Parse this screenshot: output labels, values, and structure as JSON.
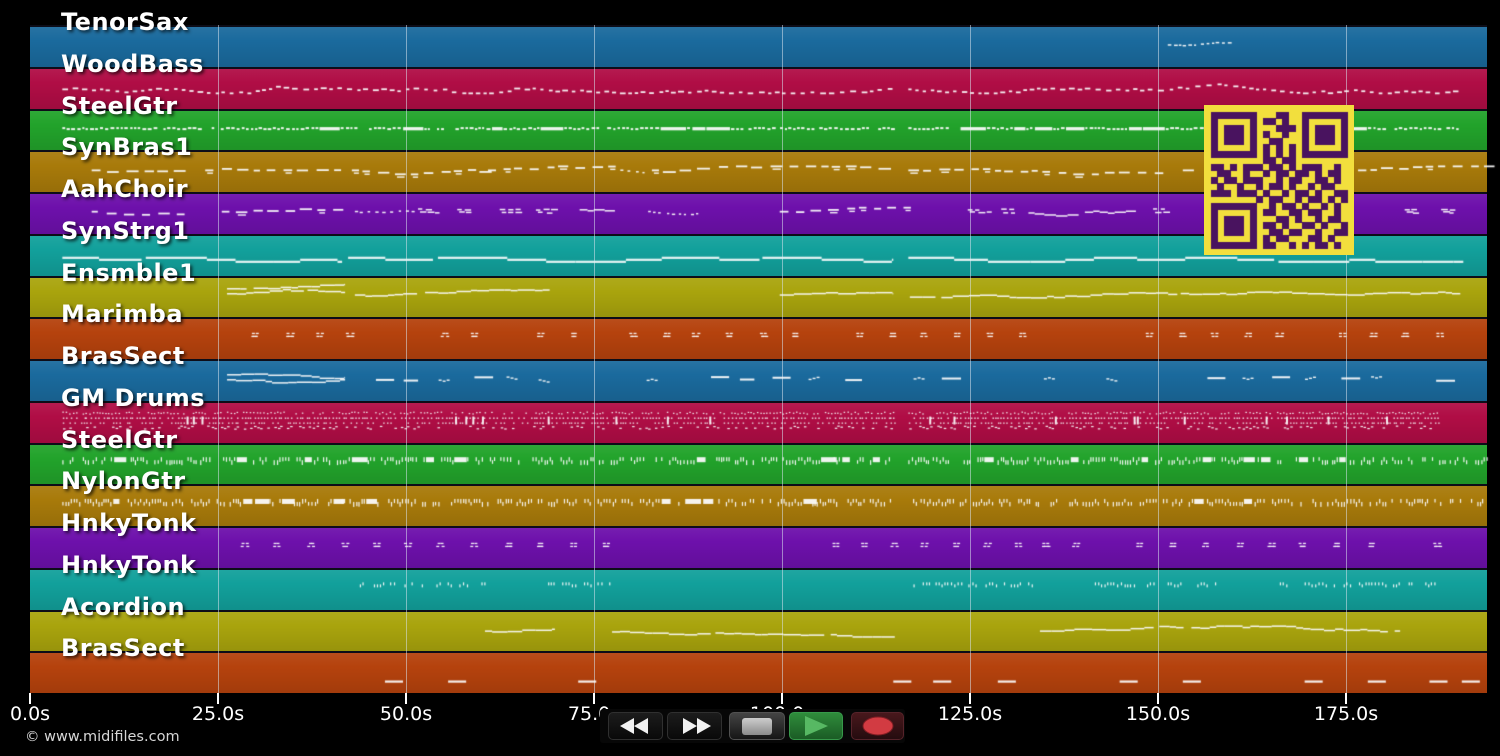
{
  "watermark": {
    "text": "© www.midifiles.com"
  },
  "colors": {
    "background": "#000000",
    "band_separator": "#0d0d18",
    "gridline": "#d7e1ec",
    "note": "#fafafa",
    "sustain_note": "#e6f4f3",
    "qr_bg": "#f2df3d",
    "qr_fg": "#49135f",
    "play_green": "#57b863",
    "record_red": "#d23b42",
    "stop_gray": "#ababab"
  },
  "timeline": {
    "duration_s": 193.8,
    "ticks": [
      {
        "s": 0,
        "label": "0.0s"
      },
      {
        "s": 25,
        "label": "25.0s"
      },
      {
        "s": 50,
        "label": "50.0s"
      },
      {
        "s": 75,
        "label": "75.0s"
      },
      {
        "s": 100,
        "label": "100.0s"
      },
      {
        "s": 125,
        "label": "125.0s"
      },
      {
        "s": 150,
        "label": "150.0s"
      },
      {
        "s": 175,
        "label": "175.0s"
      }
    ]
  },
  "transport": {
    "buttons": [
      {
        "name": "rewind"
      },
      {
        "name": "fast-forward"
      },
      {
        "name": "stop"
      },
      {
        "name": "play"
      },
      {
        "name": "record"
      }
    ]
  },
  "tracks": [
    {
      "label": "TenorSax",
      "color": "#1a6a9d",
      "segments": [
        {
          "style": "tiny",
          "from": 151.3,
          "to": 155.1,
          "y": 0.46
        },
        {
          "style": "tiny",
          "from": 155.7,
          "to": 159.4,
          "y": 0.44
        }
      ]
    },
    {
      "label": "WoodBass",
      "color": "#b00d45",
      "segments": [
        {
          "style": "bass",
          "from": 4.3,
          "to": 114.8,
          "y": 0.52
        },
        {
          "style": "bass",
          "from": 116.8,
          "to": 190.2,
          "y": 0.52
        }
      ]
    },
    {
      "label": "SteelGtr",
      "color": "#22a32b",
      "segments": [
        {
          "style": "strum",
          "from": 4.3,
          "to": 114.8,
          "y": 0.47
        },
        {
          "style": "strum",
          "from": 116.8,
          "to": 190.2,
          "y": 0.47
        }
      ]
    },
    {
      "label": "SynBras1",
      "color": "#a87a0a",
      "segments": [
        {
          "style": "dashline",
          "from": 8.2,
          "to": 19.9,
          "y": 0.46
        },
        {
          "style": "dashline",
          "from": 23.3,
          "to": 41.9,
          "y": 0.46
        },
        {
          "style": "dashline",
          "from": 42.8,
          "to": 59.8,
          "y": 0.46
        },
        {
          "style": "dashline",
          "from": 60.9,
          "to": 77.1,
          "y": 0.46
        },
        {
          "style": "dots",
          "from": 78.5,
          "to": 82.0,
          "y": 0.46
        },
        {
          "style": "dashline",
          "from": 82.7,
          "to": 114.8,
          "y": 0.46
        },
        {
          "style": "dashline",
          "from": 116.8,
          "to": 150.3,
          "y": 0.46
        },
        {
          "style": "dashline",
          "from": 153.3,
          "to": 155.7,
          "y": 0.46
        },
        {
          "style": "dashline",
          "from": 176.6,
          "to": 193.7,
          "y": 0.46
        }
      ]
    },
    {
      "label": "AahChoir",
      "color": "#6d10ab",
      "segments": [
        {
          "style": "dashline",
          "from": 8.2,
          "to": 19.9,
          "y": 0.45
        },
        {
          "style": "dashline",
          "from": 25.5,
          "to": 41.9,
          "y": 0.45
        },
        {
          "style": "dots",
          "from": 43.2,
          "to": 51.2,
          "y": 0.45
        },
        {
          "style": "clusters",
          "from": 51.6,
          "to": 77.1,
          "y": 0.45
        },
        {
          "style": "dots",
          "from": 82.2,
          "to": 89.1,
          "y": 0.45
        },
        {
          "style": "dashline",
          "from": 99.7,
          "to": 116.5,
          "y": 0.45
        },
        {
          "style": "clusters",
          "from": 124.7,
          "to": 150.3,
          "y": 0.45
        },
        {
          "style": "clusters",
          "from": 182.8,
          "to": 189.5,
          "y": 0.45
        }
      ]
    },
    {
      "label": "SynStrg1",
      "color": "#12a09b",
      "segments": [
        {
          "style": "sustain",
          "from": 4.3,
          "to": 41.5,
          "y": 0.55
        },
        {
          "style": "sustain",
          "from": 42.3,
          "to": 114.8,
          "y": 0.55
        },
        {
          "style": "sustain",
          "from": 116.8,
          "to": 190.6,
          "y": 0.55
        }
      ]
    },
    {
      "label": "Ensmble1",
      "color": "#a9a40d",
      "segments": [
        {
          "style": "dmelody",
          "from": 26.2,
          "to": 41.9,
          "y": 0.42
        },
        {
          "style": "melody",
          "from": 43.2,
          "to": 69.1,
          "y": 0.45
        },
        {
          "style": "melody",
          "from": 99.7,
          "to": 114.8,
          "y": 0.45
        },
        {
          "style": "melody",
          "from": 117.0,
          "to": 190.2,
          "y": 0.5
        }
      ]
    },
    {
      "label": "Marimba",
      "color": "#b5420d",
      "segments": [
        {
          "style": "pairs",
          "from": 29.3,
          "to": 189.5,
          "y": 0.42,
          "spacing": 4.3,
          "dropout": 0.12
        }
      ]
    },
    {
      "label": "BrasSect",
      "color": "#1a6a9d",
      "segments": [
        {
          "style": "dmelody",
          "from": 26.2,
          "to": 41.9,
          "y": 0.48
        },
        {
          "style": "mixed",
          "from": 46.0,
          "to": 70.0,
          "y": 0.45,
          "spacing": 4.3,
          "dropout": 0.15
        },
        {
          "style": "mixed",
          "from": 82.0,
          "to": 190.2,
          "y": 0.45,
          "spacing": 4.4,
          "dropout": 0.35
        }
      ]
    },
    {
      "label": "GM Drums",
      "color": "#b00d45",
      "segments": [
        {
          "style": "drums",
          "from": 4.3,
          "to": 114.8,
          "y": 0.45
        },
        {
          "style": "drums",
          "from": 116.8,
          "to": 187.1,
          "y": 0.45
        }
      ]
    },
    {
      "label": "SteelGtr",
      "color": "#22a32b",
      "segments": [
        {
          "style": "ticks",
          "from": 4.3,
          "to": 114.8,
          "y": 0.4
        },
        {
          "style": "ticks",
          "from": 116.8,
          "to": 193.7,
          "y": 0.4
        }
      ]
    },
    {
      "label": "NylonGtr",
      "color": "#a87a0a",
      "segments": [
        {
          "style": "ticks",
          "from": 4.3,
          "to": 114.8,
          "y": 0.4
        },
        {
          "style": "ticks",
          "from": 116.8,
          "to": 193.7,
          "y": 0.4
        }
      ]
    },
    {
      "label": "HnkyTonk",
      "color": "#6d10ab",
      "segments": [
        {
          "style": "pairs",
          "from": 28.0,
          "to": 82.0,
          "y": 0.45,
          "spacing": 4.3,
          "dropout": 0.1
        },
        {
          "style": "pairs",
          "from": 106.5,
          "to": 187.0,
          "y": 0.45,
          "spacing": 4.2,
          "dropout": 0.25
        }
      ]
    },
    {
      "label": "HnkyTonk",
      "color": "#12a09b",
      "segments": [
        {
          "style": "ticks_sparse",
          "from": 43.2,
          "to": 60.5,
          "y": 0.35
        },
        {
          "style": "ticks_sparse",
          "from": 68.9,
          "to": 77.8,
          "y": 0.35
        },
        {
          "style": "ticks_sparse",
          "from": 116.8,
          "to": 133.4,
          "y": 0.35
        },
        {
          "style": "ticks_sparse",
          "from": 141.6,
          "to": 157.8,
          "y": 0.35
        },
        {
          "style": "ticks_sparse",
          "from": 166.2,
          "to": 187.1,
          "y": 0.35
        }
      ]
    },
    {
      "label": "Acordion",
      "color": "#a9a40d",
      "segments": [
        {
          "style": "melody",
          "from": 60.5,
          "to": 69.8,
          "y": 0.5
        },
        {
          "style": "melody",
          "from": 77.4,
          "to": 115.0,
          "y": 0.52
        },
        {
          "style": "melody",
          "from": 134.3,
          "to": 182.2,
          "y": 0.5
        }
      ]
    },
    {
      "label": "BrasSect",
      "color": "#b5420d",
      "segments": [
        {
          "style": "dash_list",
          "times": [
            48.4,
            56.8,
            74.1,
            116.0,
            121.3,
            129.9,
            146.1,
            154.5,
            170.7,
            179.1,
            187.3,
            191.6
          ],
          "y": 0.7,
          "width": 2.4
        }
      ]
    }
  ],
  "qr": {
    "rows": [
      "111111100011001111111",
      "100000101101001000001",
      "101110100011101011101",
      "101110101001001011101",
      "101110100110001011101",
      "100000101010101000001",
      "111111101010101111111",
      "000000001101100000000",
      "110101110110101110010",
      "011001001011011010110",
      "101101110010110011010",
      "010010010110100101100",
      "111011101001011010011",
      "000000010110010110101",
      "111111100101101001010",
      "100000101100110110010",
      "101110100011010010110",
      "101110101101001101001",
      "101110100110110010011",
      "100000101011000110100",
      "111111101100101011010"
    ]
  }
}
